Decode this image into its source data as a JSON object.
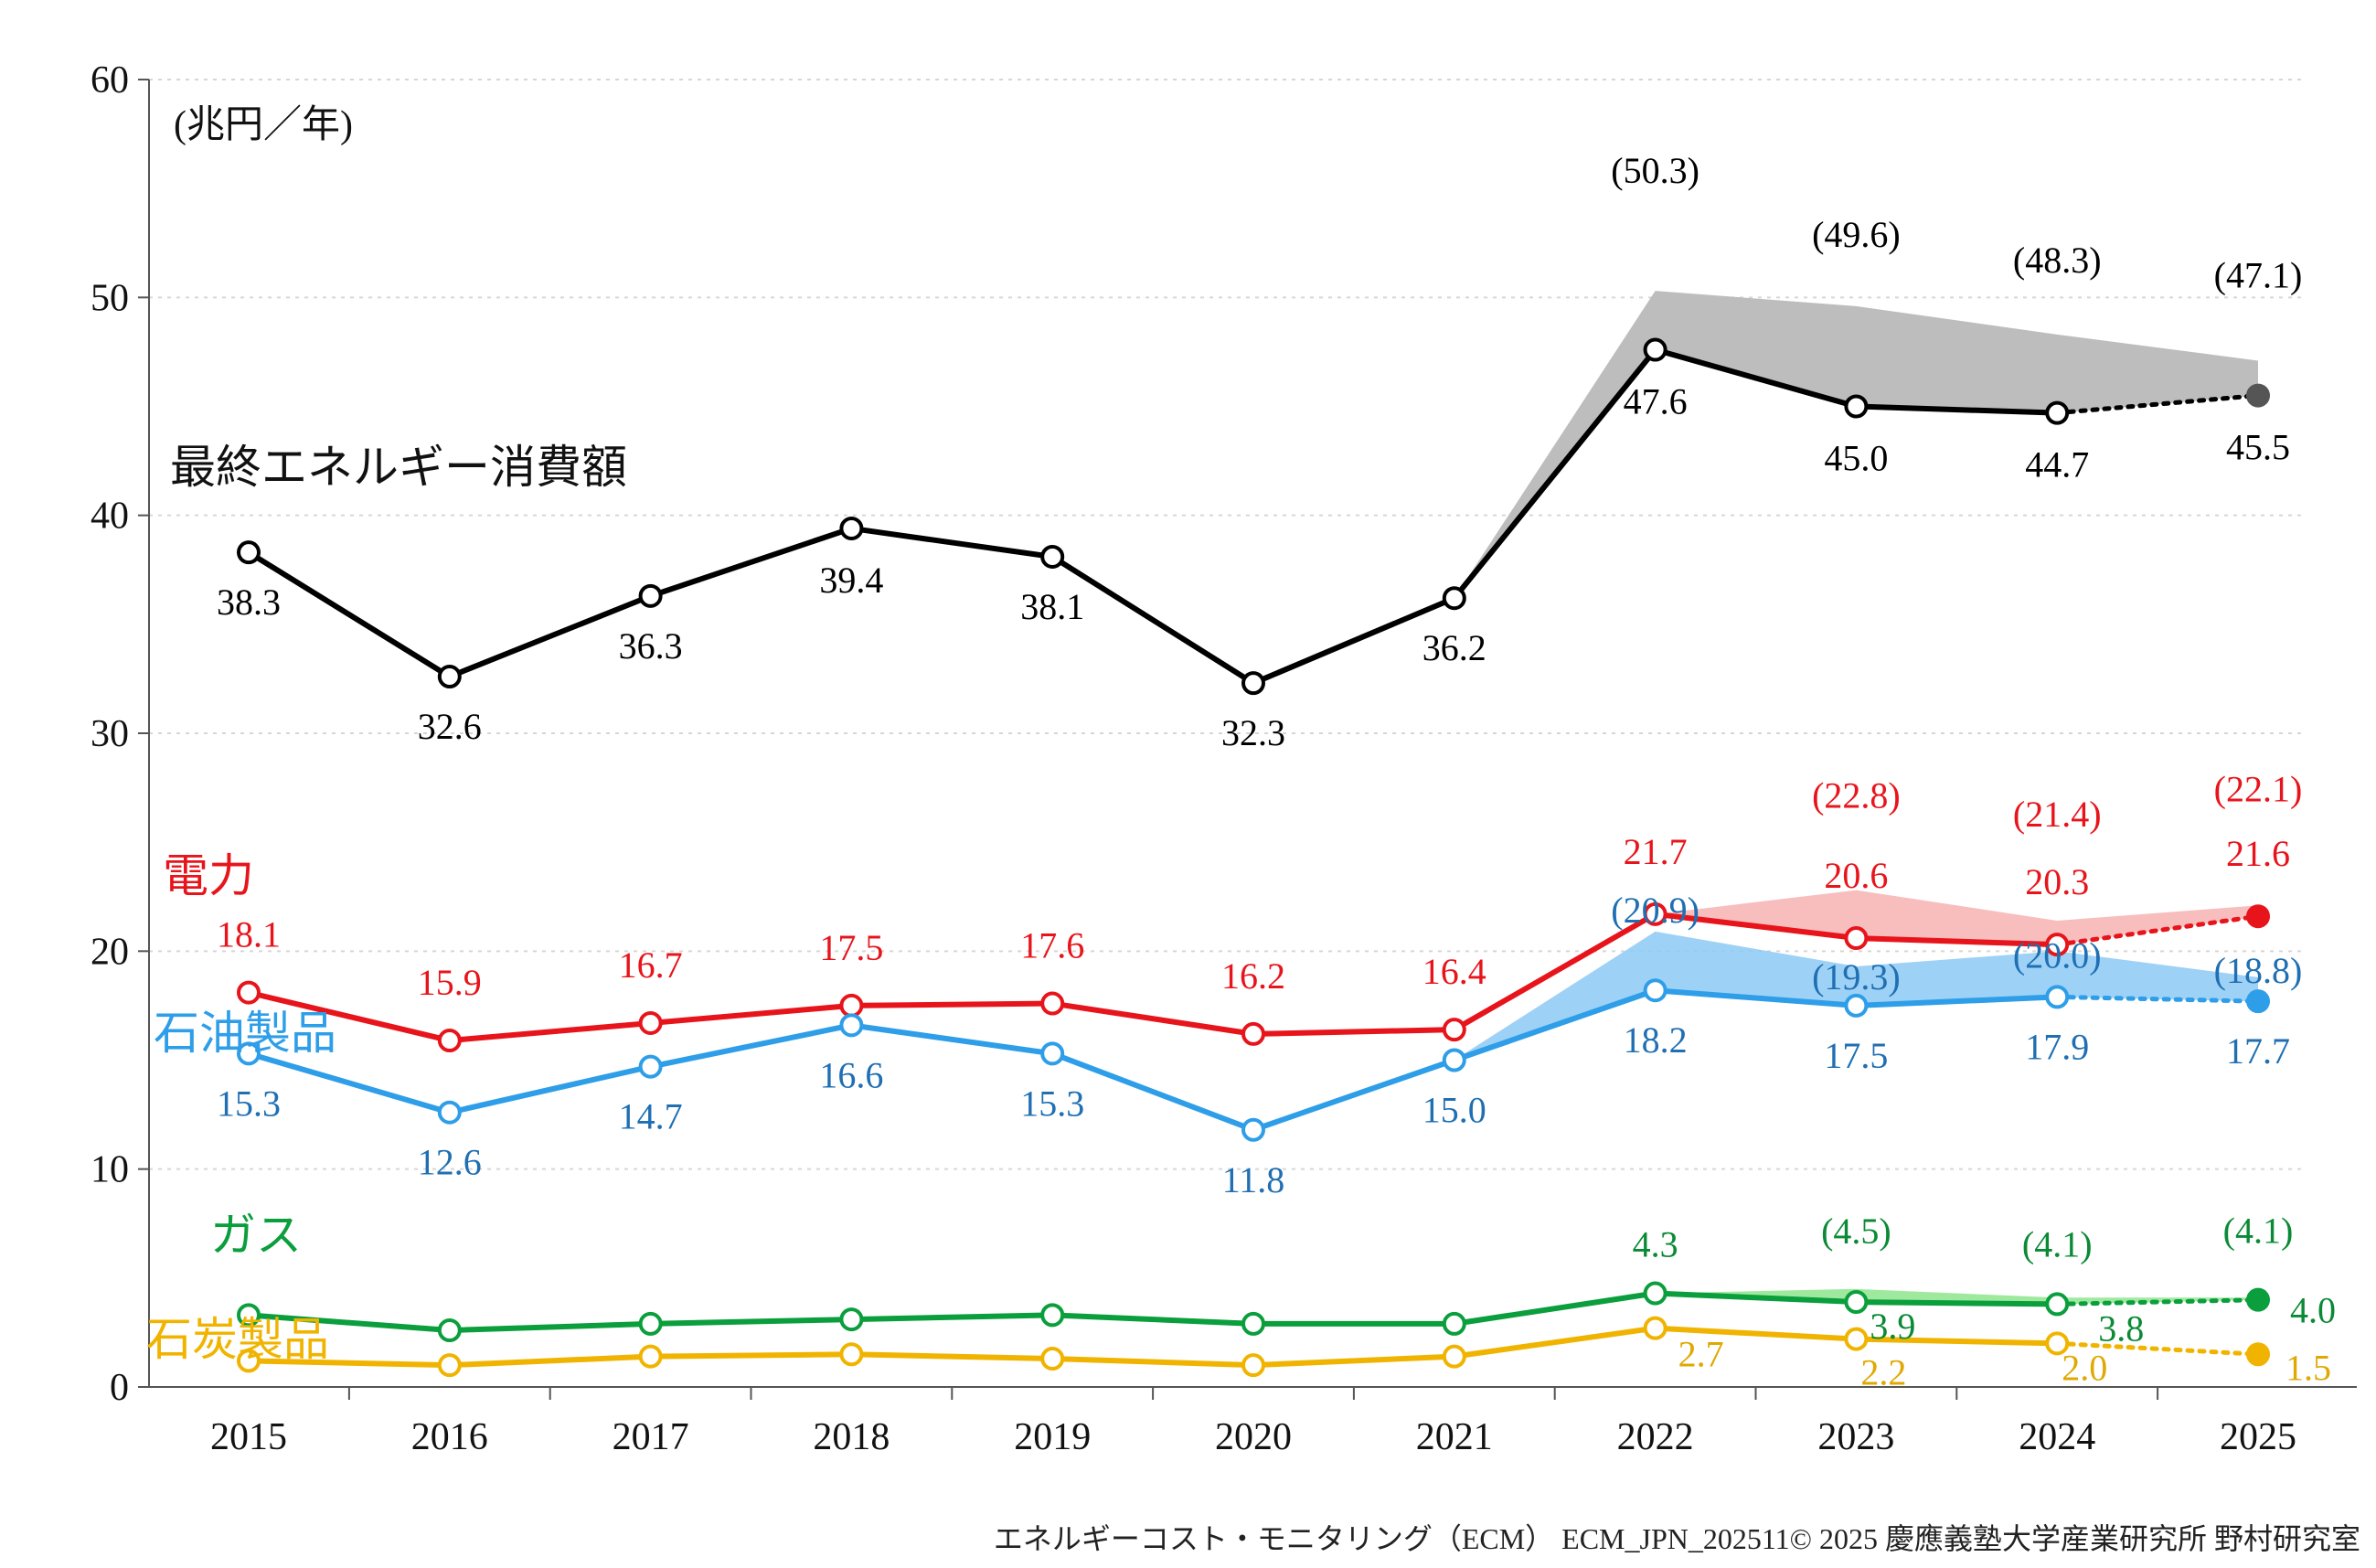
{
  "chart_data": {
    "type": "line",
    "unit": "(兆円／年)",
    "footer": "エネルギーコスト・モニタリング（ECM） ECM_JPN_202511© 2025 慶應義塾大学産業研究所 野村研究室",
    "ylim": [
      0,
      60
    ],
    "yticks": [
      "0",
      "10",
      "20",
      "30",
      "40",
      "50",
      "60"
    ],
    "categories": [
      "2015",
      "2016",
      "2017",
      "2018",
      "2019",
      "2020",
      "2021",
      "2022",
      "2023",
      "2024",
      "2025"
    ],
    "series": [
      {
        "name": "最終エネルギー消費額",
        "color": "#000000",
        "band_color": "#bdbdbd",
        "values": [
          38.3,
          32.6,
          36.3,
          39.4,
          38.1,
          32.3,
          36.2,
          47.6,
          45.0,
          44.7,
          45.5
        ],
        "labels": [
          "38.3",
          "32.6",
          "36.3",
          "39.4",
          "38.1",
          "32.3",
          "36.2",
          "47.6",
          "45.0",
          "44.7",
          "45.5"
        ],
        "paren_values": [
          null,
          null,
          null,
          null,
          null,
          null,
          null,
          50.3,
          49.6,
          48.3,
          47.1
        ],
        "paren_labels": [
          "",
          "",
          "",
          "",
          "",
          "",
          "",
          "(50.3)",
          "(49.6)",
          "(48.3)",
          "(47.1)"
        ]
      },
      {
        "name": "電力",
        "color": "#e8141b",
        "band_color": "#f7b3b3",
        "values": [
          18.1,
          15.9,
          16.7,
          17.5,
          17.6,
          16.2,
          16.4,
          21.7,
          20.6,
          20.3,
          21.6
        ],
        "labels": [
          "18.1",
          "15.9",
          "16.7",
          "17.5",
          "17.6",
          "16.2",
          "16.4",
          "21.7",
          "20.6",
          "20.3",
          "21.6"
        ],
        "paren_values": [
          null,
          null,
          null,
          null,
          null,
          null,
          null,
          21.7,
          22.8,
          21.4,
          22.1
        ],
        "paren_labels": [
          "",
          "",
          "",
          "",
          "",
          "",
          "",
          "",
          "(22.8)",
          "(21.4)",
          "(22.1)"
        ]
      },
      {
        "name": "石油製品",
        "color": "#2e9ee8",
        "label_color": "#1f6fb2",
        "band_color": "#8dc9f5",
        "values": [
          15.3,
          12.6,
          14.7,
          16.6,
          15.3,
          11.8,
          15.0,
          18.2,
          17.5,
          17.9,
          17.7
        ],
        "labels": [
          "15.3",
          "12.6",
          "14.7",
          "16.6",
          "15.3",
          "11.8",
          "15.0",
          "18.2",
          "17.5",
          "17.9",
          "17.7"
        ],
        "paren_values": [
          null,
          null,
          null,
          null,
          null,
          null,
          null,
          20.9,
          19.3,
          20.0,
          18.8
        ],
        "paren_labels": [
          "",
          "",
          "",
          "",
          "",
          "",
          "",
          "(20.9)",
          "(19.3)",
          "(20.0)",
          "(18.8)"
        ]
      },
      {
        "name": "ガス",
        "color": "#0a9e3c",
        "label_color": "#0a8a35",
        "band_color": "#8ee58e",
        "values": [
          3.3,
          2.6,
          2.9,
          3.1,
          3.3,
          2.9,
          2.9,
          4.3,
          3.9,
          3.8,
          4.0
        ],
        "labels": [
          "",
          "",
          "",
          "",
          "",
          "",
          "",
          "4.3",
          "3.9",
          "3.8",
          "4.0"
        ],
        "paren_values": [
          null,
          null,
          null,
          null,
          null,
          null,
          null,
          4.3,
          4.5,
          4.1,
          4.1
        ],
        "paren_labels": [
          "",
          "",
          "",
          "",
          "",
          "",
          "",
          "",
          "(4.5)",
          "(4.1)",
          "(4.1)"
        ]
      },
      {
        "name": "石炭製品",
        "color": "#f0b400",
        "label_color": "#e0a800",
        "band_color": null,
        "values": [
          1.2,
          1.0,
          1.4,
          1.5,
          1.3,
          1.0,
          1.4,
          2.7,
          2.2,
          2.0,
          1.5
        ],
        "labels": [
          "",
          "",
          "",
          "",
          "",
          "",
          "",
          "2.7",
          "2.2",
          "2.0",
          "1.5"
        ],
        "paren_values": [
          null,
          null,
          null,
          null,
          null,
          null,
          null,
          null,
          null,
          null,
          null
        ],
        "paren_labels": [
          "",
          "",
          "",
          "",
          "",
          "",
          "",
          "",
          "",
          "",
          ""
        ]
      }
    ]
  }
}
